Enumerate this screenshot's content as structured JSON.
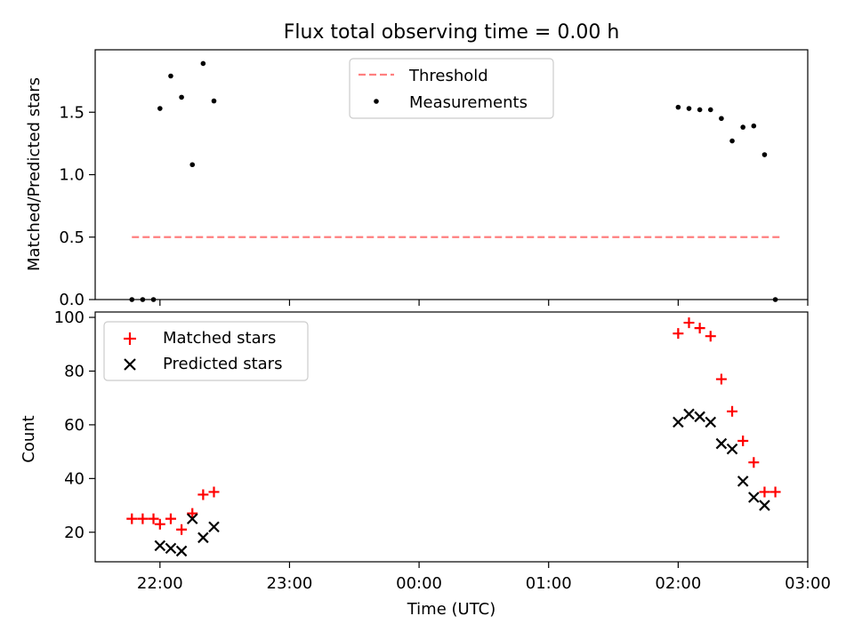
{
  "chart_data": [
    {
      "type": "scatter",
      "title": "Flux total observing time = 0.00 h",
      "xlabel": "",
      "ylabel": "Matched/Predicted stars",
      "xlim": [
        "21:30",
        "03:00"
      ],
      "ylim": [
        0,
        2.0
      ],
      "yticks": [
        "0.0",
        "0.5",
        "1.0",
        "1.5"
      ],
      "grid": false,
      "legend_position": "top-center",
      "series": [
        {
          "name": "Threshold",
          "style": "dashed-line",
          "color": "#ff7f7f",
          "points": [
            [
              "21:47",
              0.5
            ],
            [
              "02:47",
              0.5
            ]
          ]
        },
        {
          "name": "Measurements",
          "style": "dot",
          "color": "#000000",
          "points": [
            [
              "21:47",
              0.0
            ],
            [
              "21:52",
              0.0
            ],
            [
              "21:57",
              0.0
            ],
            [
              "22:00",
              1.53
            ],
            [
              "22:05",
              1.79
            ],
            [
              "22:10",
              1.62
            ],
            [
              "22:15",
              1.08
            ],
            [
              "22:20",
              1.89
            ],
            [
              "22:25",
              1.59
            ],
            [
              "02:00",
              1.54
            ],
            [
              "02:05",
              1.53
            ],
            [
              "02:10",
              1.52
            ],
            [
              "02:15",
              1.52
            ],
            [
              "02:20",
              1.45
            ],
            [
              "02:25",
              1.27
            ],
            [
              "02:30",
              1.38
            ],
            [
              "02:35",
              1.39
            ],
            [
              "02:40",
              1.16
            ],
            [
              "02:45",
              0.0
            ]
          ]
        }
      ]
    },
    {
      "type": "scatter",
      "title": "",
      "xlabel": "Time (UTC)",
      "ylabel": "Count",
      "xlim": [
        "21:30",
        "03:00"
      ],
      "ylim": [
        9,
        102
      ],
      "yticks": [
        "20",
        "40",
        "60",
        "80",
        "100"
      ],
      "xticks": [
        "22:00",
        "23:00",
        "00:00",
        "01:00",
        "02:00",
        "03:00"
      ],
      "grid": false,
      "legend_position": "top-left",
      "series": [
        {
          "name": "Matched stars",
          "marker": "plus",
          "color": "#ff0000",
          "points": [
            [
              "21:47",
              25
            ],
            [
              "21:52",
              25
            ],
            [
              "21:57",
              25
            ],
            [
              "22:00",
              23
            ],
            [
              "22:05",
              25
            ],
            [
              "22:10",
              21
            ],
            [
              "22:15",
              27
            ],
            [
              "22:20",
              34
            ],
            [
              "22:25",
              35
            ],
            [
              "02:00",
              94
            ],
            [
              "02:05",
              98
            ],
            [
              "02:10",
              96
            ],
            [
              "02:15",
              93
            ],
            [
              "02:20",
              77
            ],
            [
              "02:25",
              65
            ],
            [
              "02:30",
              54
            ],
            [
              "02:35",
              46
            ],
            [
              "02:40",
              35
            ],
            [
              "02:45",
              35
            ]
          ]
        },
        {
          "name": "Predicted stars",
          "marker": "x",
          "color": "#000000",
          "points": [
            [
              "22:00",
              15
            ],
            [
              "22:05",
              14
            ],
            [
              "22:10",
              13
            ],
            [
              "22:15",
              25
            ],
            [
              "22:20",
              18
            ],
            [
              "22:25",
              22
            ],
            [
              "02:00",
              61
            ],
            [
              "02:05",
              64
            ],
            [
              "02:10",
              63
            ],
            [
              "02:15",
              61
            ],
            [
              "02:20",
              53
            ],
            [
              "02:25",
              51
            ],
            [
              "02:30",
              39
            ],
            [
              "02:35",
              33
            ],
            [
              "02:40",
              30
            ]
          ]
        }
      ]
    }
  ]
}
